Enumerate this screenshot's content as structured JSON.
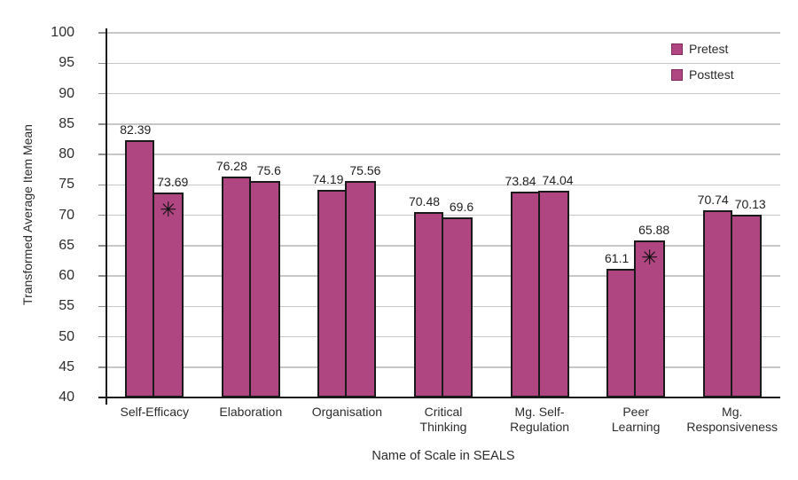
{
  "chart_data": {
    "type": "bar",
    "title": "",
    "xlabel": "Name of Scale in SEALS",
    "ylabel": "Transformed Average Item Mean",
    "ylim": [
      40,
      100
    ],
    "ytick_step": 5,
    "grid": true,
    "legend_position": "top-right-inside",
    "categories": [
      "Self-Efficacy",
      "Elaboration",
      "Organisation",
      "Critical\nThinking",
      "Mg. Self-\nRegulation",
      "Peer\nLearning",
      "Mg.\nResponsiveness"
    ],
    "series": [
      {
        "name": "Pretest",
        "values": [
          82.39,
          76.28,
          74.19,
          70.48,
          73.84,
          61.1,
          70.74
        ],
        "labels": [
          "82.39",
          "76.28",
          "74.19",
          "70.48",
          "73.84",
          "61.1",
          "70.74"
        ]
      },
      {
        "name": "Posttest",
        "values": [
          73.69,
          75.6,
          75.56,
          69.6,
          74.04,
          65.88,
          70.13
        ],
        "labels": [
          "73.69",
          "75.6",
          "75.56",
          "69.6",
          "74.04",
          "65.88",
          "70.13"
        ]
      }
    ],
    "annotations": [
      {
        "series": "Posttest",
        "category": "Self-Efficacy",
        "category_index": 0,
        "symbol": "✳"
      },
      {
        "series": "Posttest",
        "category": "Peer Learning",
        "category_index": 5,
        "symbol": "✳"
      }
    ],
    "colors": {
      "bar_fill": "#B04681",
      "bar_border": "#1a1a1a",
      "gridline": "#c7c7c7",
      "axis": "#1a1a1a",
      "text": "#2b2b2b"
    }
  }
}
